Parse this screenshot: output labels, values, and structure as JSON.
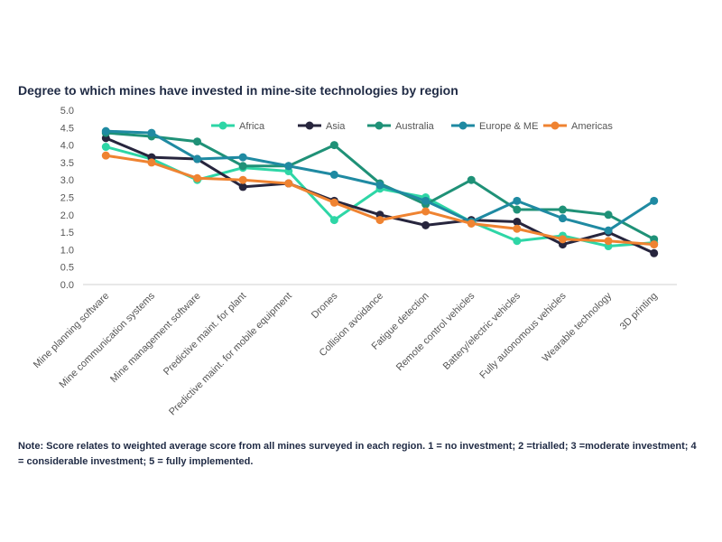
{
  "chart_data": {
    "type": "line",
    "title": "Degree to which mines have invested in mine-site technologies by region",
    "xlabel": "",
    "ylabel": "",
    "ylim": [
      0,
      5
    ],
    "yticks": [
      "0.0",
      "0.5",
      "1.0",
      "1.5",
      "2.0",
      "2.5",
      "3.0",
      "3.5",
      "4.0",
      "4.5",
      "5.0"
    ],
    "grid": false,
    "legend_position": "top",
    "categories": [
      "Mine planning software",
      "Mine communication systems",
      "Mine management software",
      "Predictive maint. for plant",
      "Predictive maint. for mobile equipment",
      "Drones",
      "Collision avoidance",
      "Fatigue detection",
      "Remote control vehicles",
      "Battery/electric vehicles",
      "Fully autonomous vehicles",
      "Wearable technology",
      "3D printing"
    ],
    "series": [
      {
        "name": "Africa",
        "color": "#2ed6a6",
        "values": [
          3.95,
          3.6,
          3.0,
          3.35,
          3.25,
          1.85,
          2.75,
          2.5,
          1.8,
          1.25,
          1.4,
          1.1,
          1.2
        ]
      },
      {
        "name": "Asia",
        "color": "#27253d",
        "values": [
          4.2,
          3.65,
          3.6,
          2.8,
          2.9,
          2.4,
          2.0,
          1.7,
          1.85,
          1.8,
          1.15,
          1.5,
          0.9
        ]
      },
      {
        "name": "Australia",
        "color": "#1f9177",
        "values": [
          4.35,
          4.25,
          4.1,
          3.4,
          3.4,
          4.0,
          2.9,
          2.3,
          3.0,
          2.15,
          2.15,
          2.0,
          1.3
        ]
      },
      {
        "name": "Europe & ME",
        "color": "#1f8aa2",
        "values": [
          4.4,
          4.35,
          3.6,
          3.65,
          3.4,
          3.15,
          2.85,
          2.4,
          1.8,
          2.4,
          1.9,
          1.55,
          2.4
        ]
      },
      {
        "name": "Americas",
        "color": "#ef8331",
        "values": [
          3.7,
          3.5,
          3.05,
          3.0,
          2.9,
          2.35,
          1.85,
          2.1,
          1.75,
          1.6,
          1.3,
          1.25,
          1.15
        ]
      }
    ]
  },
  "note": "Note: Score relates to weighted average score from all mines surveyed in each region. 1 = no investment; 2 =trialled; 3 =moderate investment; 4 = considerable investment; 5 = fully implemented."
}
